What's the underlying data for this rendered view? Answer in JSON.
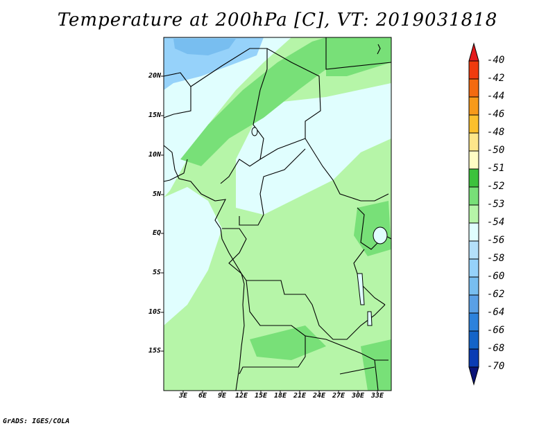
{
  "title": "Temperature at 200hPa [C], VT: 2019031818",
  "credit": "GrADS: IGES/COLA",
  "lat_labels": [
    "20N",
    "15N",
    "10N",
    "5N",
    "EQ",
    "5S",
    "10S",
    "15S"
  ],
  "lon_labels": [
    "3E",
    "6E",
    "9E",
    "12E",
    "15E",
    "18E",
    "21E",
    "24E",
    "27E",
    "30E",
    "33E"
  ],
  "legend": [
    {
      "label": "-40",
      "color": "#e41a1c"
    },
    {
      "label": "-42",
      "color": "#f03b0e"
    },
    {
      "label": "-44",
      "color": "#f36a10"
    },
    {
      "label": "-46",
      "color": "#f79a1a"
    },
    {
      "label": "-48",
      "color": "#fbc02d"
    },
    {
      "label": "-50",
      "color": "#fde68a"
    },
    {
      "label": "-51",
      "color": "#fffcc4"
    },
    {
      "label": "-52",
      "color": "#3cc23c"
    },
    {
      "label": "-53",
      "color": "#78e078"
    },
    {
      "label": "-54",
      "color": "#b6f5a8"
    },
    {
      "label": "-56",
      "color": "#e0fefe"
    },
    {
      "label": "-58",
      "color": "#b4e0fa"
    },
    {
      "label": "-60",
      "color": "#96d2fa"
    },
    {
      "label": "-62",
      "color": "#78bef0"
    },
    {
      "label": "-64",
      "color": "#5aa0e6"
    },
    {
      "label": "-66",
      "color": "#2d82dc"
    },
    {
      "label": "-68",
      "color": "#1464c8"
    },
    {
      "label": "-70",
      "color": "#0a3cb4"
    },
    {
      "label": "",
      "color": "#0a1478"
    }
  ]
}
